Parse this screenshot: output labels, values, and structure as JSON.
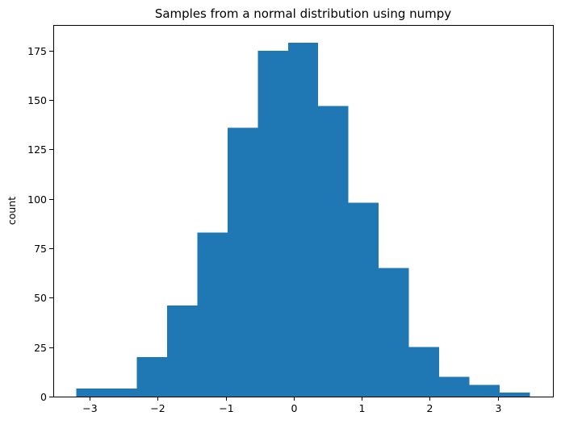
{
  "chart_data": {
    "type": "bar",
    "title": "Samples from a normal distribution using numpy",
    "xlabel": "",
    "ylabel": "count",
    "bin_edges": [
      -3.2,
      -2.755,
      -2.31,
      -1.865,
      -1.42,
      -0.975,
      -0.53,
      -0.085,
      0.36,
      0.805,
      1.25,
      1.695,
      2.14,
      2.585,
      3.03,
      3.475
    ],
    "values": [
      4,
      4,
      20,
      46,
      83,
      136,
      175,
      179,
      147,
      98,
      65,
      25,
      10,
      6,
      2
    ],
    "xlim": [
      -3.537,
      3.812
    ],
    "ylim": [
      0,
      188
    ],
    "xticks": [
      -3,
      -2,
      -1,
      0,
      1,
      2,
      3
    ],
    "xtick_labels": [
      "−3",
      "−2",
      "−1",
      "0",
      "1",
      "2",
      "3"
    ],
    "yticks": [
      0,
      25,
      50,
      75,
      100,
      125,
      150,
      175
    ],
    "ytick_labels": [
      "0",
      "25",
      "50",
      "75",
      "100",
      "125",
      "150",
      "175"
    ],
    "bar_color": "#1f77b4",
    "grid": false,
    "legend": "none"
  }
}
